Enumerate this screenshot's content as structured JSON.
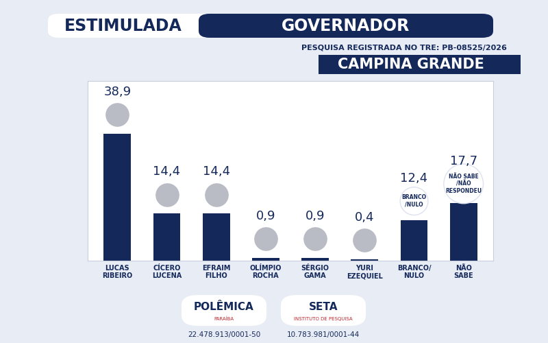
{
  "chart_data": {
    "type": "bar",
    "title": "GOVERNADOR",
    "subtitle": "PESQUISA REGISTRADA NO TRE: PB-08525/2026",
    "annotations": {
      "tag": "ESTIMULADA",
      "city": "CAMPINA GRANDE",
      "bubbles": {
        "BRANCO/\nNULO": "BRANCO\n/NULO",
        "NÃO\nSABE": "NÃO SABE\n/NÃO\nRESPONDEU"
      },
      "logos": [
        {
          "name": "POLÊMICA",
          "sub": "PARAÍBA",
          "id": "22.478.913/0001-50"
        },
        {
          "name": "SETA",
          "sub": "INSTITUTO DE PESQUISA",
          "id": "10.783.981/0001-44"
        }
      ]
    },
    "categories": [
      "LUCAS\nRIBEIRO",
      "CÍCERO\nLUCENA",
      "EFRAIM\nFILHO",
      "OLÍMPIO\nROCHA",
      "SÉRGIO\nGAMA",
      "YURI\nEZEQUIEL",
      "BRANCO/\nNULO",
      "NÃO\nSABE"
    ],
    "values": [
      38.9,
      14.4,
      14.4,
      0.9,
      0.9,
      0.4,
      12.4,
      17.7
    ],
    "value_labels": [
      "38,9",
      "14,4",
      "14,4",
      "0,9",
      "0,9",
      "0,4",
      "12,4",
      "17,7"
    ],
    "color": "#14285a",
    "ylim": [
      0,
      55
    ],
    "yticks": [],
    "grid": false,
    "data_labels": true,
    "tick_labels": "x"
  }
}
